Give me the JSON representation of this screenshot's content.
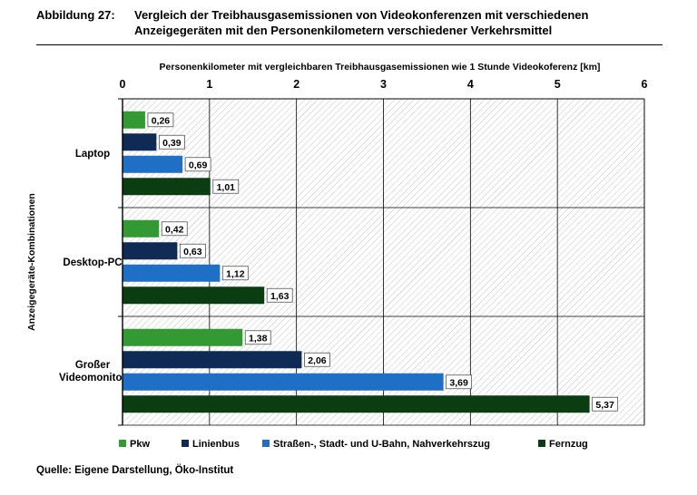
{
  "figure": {
    "number": "Abbildung 27:",
    "title_line1": "Vergleich der Treibhausgasemissionen von Videokonferenzen mit verschiedenen",
    "title_line2": "Anzeigegeräten mit den Personenkilometern verschiedener Verkehrsmittel"
  },
  "source": "Quelle: Eigene Darstellung, Öko-Institut",
  "chart_data": {
    "type": "bar",
    "orientation": "horizontal",
    "xlabel": "Personenkilometer mit vergleichbaren Treibhausgasemissionen  wie 1 Stunde Videokoferenz [km]",
    "ylabel": "Anzeigegeräte-Kombinationen",
    "xlim": [
      0,
      6
    ],
    "xticks": [
      0,
      1,
      2,
      3,
      4,
      5,
      6
    ],
    "x_axis_position": "top",
    "grid": true,
    "plot_background": "hatched light grey",
    "legend_position": "bottom",
    "categories": [
      "Laptop",
      "Desktop-PC",
      "Großer Videomonitor"
    ],
    "category_display": [
      [
        "Laptop"
      ],
      [
        "Desktop-PC"
      ],
      [
        "Großer",
        "Videomonitor"
      ]
    ],
    "series": [
      {
        "name": "Pkw",
        "color": "#339933",
        "values": [
          0.26,
          0.42,
          1.38
        ],
        "labels": [
          "0,26",
          "0,42",
          "1,38"
        ]
      },
      {
        "name": "Linienbus",
        "color": "#0f2a55",
        "values": [
          0.39,
          0.63,
          2.06
        ],
        "labels": [
          "0,39",
          "0,63",
          "2,06"
        ]
      },
      {
        "name": "Straßen-, Stadt- und U-Bahn, Nahverkehrszug",
        "color": "#1f6fc6",
        "values": [
          0.69,
          1.12,
          3.69
        ],
        "labels": [
          "0,69",
          "1,12",
          "3,69"
        ]
      },
      {
        "name": "Fernzug",
        "color": "#0b3d12",
        "values": [
          1.01,
          1.63,
          5.37
        ],
        "labels": [
          "1,01",
          "1,63",
          "5,37"
        ]
      }
    ]
  }
}
